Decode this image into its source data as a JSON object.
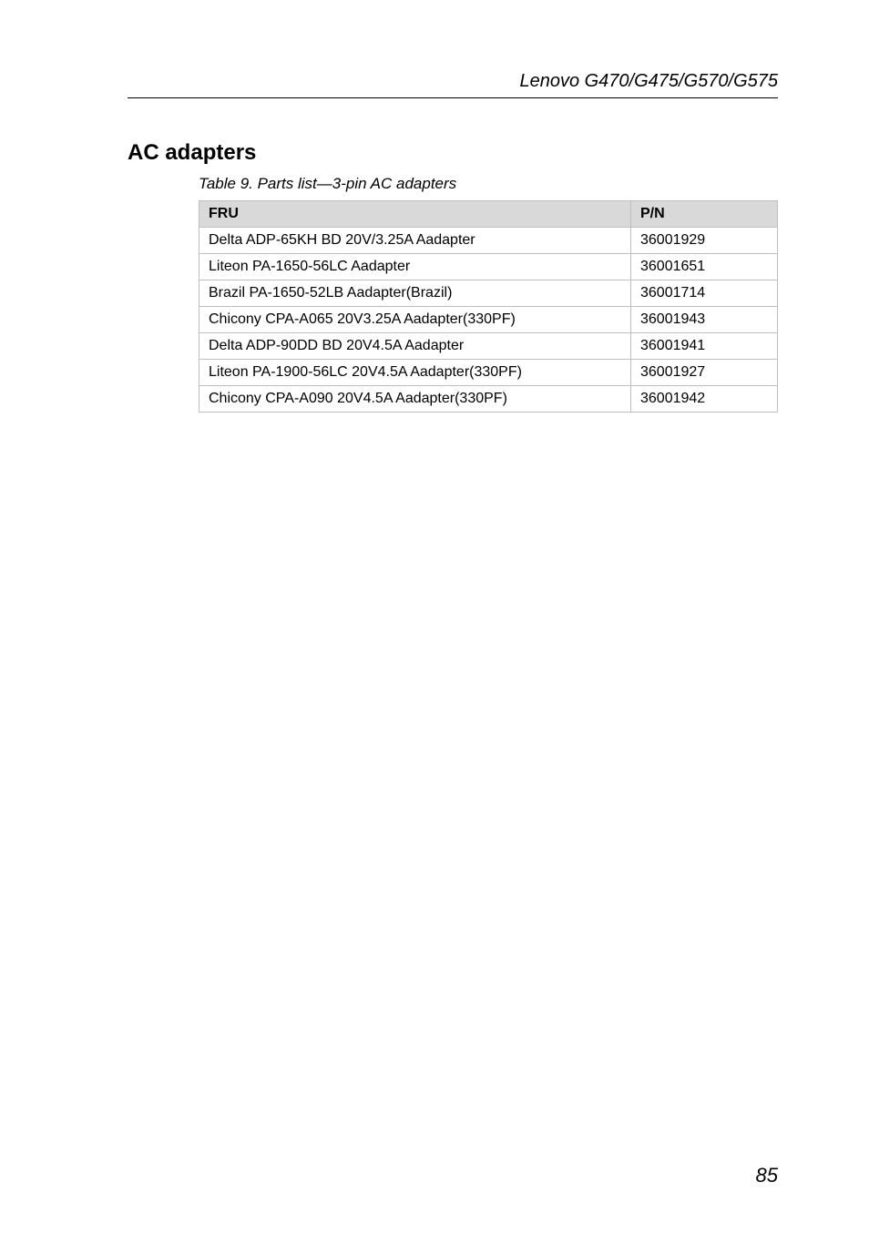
{
  "header": {
    "model_text": "Lenovo G470/G475/G570/G575"
  },
  "section": {
    "title": "AC adapters",
    "caption": "Table 9. Parts list—3-pin AC adapters"
  },
  "table": {
    "columns": [
      "FRU",
      "P/N"
    ],
    "header_bg": "#d9d9d9",
    "border_color": "#bfbfbf",
    "fontsize": 16,
    "rows": [
      [
        "Delta ADP-65KH BD 20V/3.25A Aadapter",
        "36001929"
      ],
      [
        "Liteon PA-1650-56LC Aadapter",
        "36001651"
      ],
      [
        "Brazil PA-1650-52LB Aadapter(Brazil)",
        "36001714"
      ],
      [
        "Chicony CPA-A065 20V3.25A Aadapter(330PF)",
        "36001943"
      ],
      [
        "Delta ADP-90DD BD 20V4.5A Aadapter",
        "36001941"
      ],
      [
        "Liteon PA-1900-56LC 20V4.5A Aadapter(330PF)",
        "36001927"
      ],
      [
        "Chicony CPA-A090 20V4.5A Aadapter(330PF)",
        "36001942"
      ]
    ]
  },
  "footer": {
    "page_number": "85"
  }
}
